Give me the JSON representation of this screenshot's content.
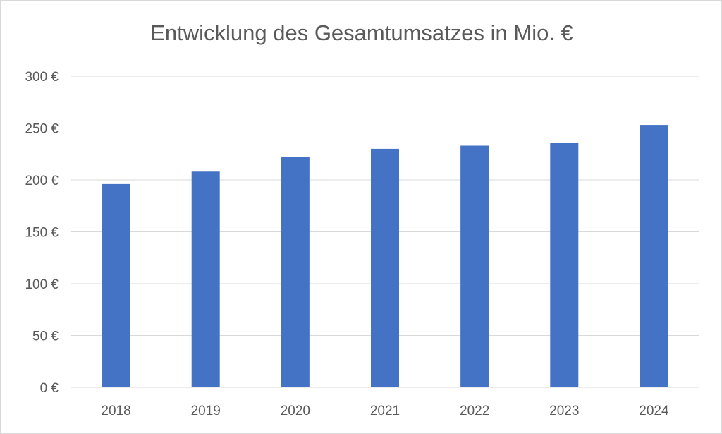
{
  "chart_data": {
    "type": "bar",
    "title": "Entwicklung des Gesamtumsatzes in Mio. €",
    "categories": [
      "2018",
      "2019",
      "2020",
      "2021",
      "2022",
      "2023",
      "2024"
    ],
    "values": [
      196,
      208,
      222,
      230,
      233,
      236,
      253
    ],
    "ylim": [
      0,
      300
    ],
    "yticks": [
      0,
      50,
      100,
      150,
      200,
      250,
      300
    ],
    "ytick_labels": [
      "0 €",
      "50 €",
      "100 €",
      "150 €",
      "200 €",
      "250 €",
      "300 €"
    ],
    "grid": true,
    "legend": "none",
    "bar_color": "#4472c4",
    "grid_color": "#d9d9d9"
  }
}
